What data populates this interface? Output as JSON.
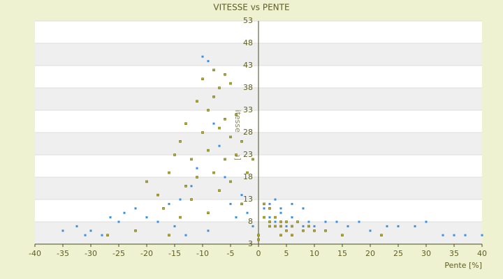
{
  "chart_data": {
    "type": "scatter",
    "title": "VITESSE vs PENTE",
    "x_label": "Pente [%]",
    "y_label": "Vitesse [km/h]",
    "xlim": [
      -40,
      40
    ],
    "xticks": [
      -40,
      -35,
      -30,
      -25,
      -20,
      -15,
      -10,
      -5,
      0,
      5,
      10,
      15,
      20,
      25,
      30,
      35,
      40
    ],
    "ylim": [
      3,
      53
    ],
    "yticks": [
      3,
      8,
      13,
      18,
      23,
      28,
      33,
      38,
      43,
      48,
      53
    ],
    "grid": true,
    "series": [
      {
        "color": "#3a8fd8",
        "x": [
          -32.5,
          -31,
          -30,
          -28,
          -26.5,
          -25,
          -24,
          -22,
          -20,
          -18,
          -16,
          -15,
          -14,
          -12,
          -11,
          -10,
          -9,
          -8,
          -7,
          -6,
          -5,
          -4,
          -3,
          -2,
          -1,
          1,
          2,
          3,
          4,
          5,
          6,
          7,
          8,
          9,
          10,
          12,
          14,
          16,
          18,
          20,
          23,
          25,
          28,
          30,
          33,
          35,
          37,
          40,
          -35,
          -13,
          -9,
          2,
          3,
          4,
          6,
          8
        ],
        "values": [
          7,
          5,
          6,
          5,
          9,
          8,
          10,
          11,
          9,
          8,
          12,
          7,
          13,
          16,
          20,
          45,
          44,
          30,
          25,
          18,
          12,
          9,
          14,
          10,
          7,
          11,
          9,
          8,
          10,
          7,
          9,
          8,
          7,
          8,
          7,
          8,
          8,
          7,
          8,
          6,
          7,
          7,
          7,
          8,
          5,
          5,
          5,
          5,
          6,
          5,
          6,
          12,
          13,
          11,
          12,
          11
        ]
      },
      {
        "color": "#b5ad10",
        "x": [
          -20,
          -18,
          -17,
          -16,
          -15,
          -14,
          -13,
          -12,
          -11,
          -10,
          -10,
          -9,
          -9,
          -8,
          -8,
          -8,
          -7,
          -7,
          -7,
          -6,
          -6,
          -6,
          -5,
          -5,
          -5,
          -4,
          -4,
          -3,
          -3,
          -2,
          -1,
          -12,
          -14,
          -16,
          -22,
          -27,
          0,
          0,
          1,
          2,
          2,
          3,
          3,
          4,
          4,
          5,
          5,
          6,
          7,
          8,
          9,
          10,
          12,
          15,
          1,
          2,
          4,
          6,
          22,
          -9,
          -11,
          -13
        ],
        "values": [
          17,
          14,
          11,
          19,
          23,
          26,
          30,
          22,
          35,
          40,
          28,
          33,
          24,
          42,
          36,
          19,
          38,
          29,
          15,
          41,
          31,
          22,
          39,
          27,
          17,
          32,
          23,
          26,
          12,
          19,
          22,
          13,
          9,
          5,
          6,
          5,
          5,
          4,
          9,
          8,
          7,
          9,
          7,
          8,
          7,
          8,
          6,
          7,
          8,
          6,
          7,
          6,
          6,
          5,
          12,
          11,
          5,
          5,
          5,
          10,
          18,
          16
        ]
      }
    ]
  }
}
